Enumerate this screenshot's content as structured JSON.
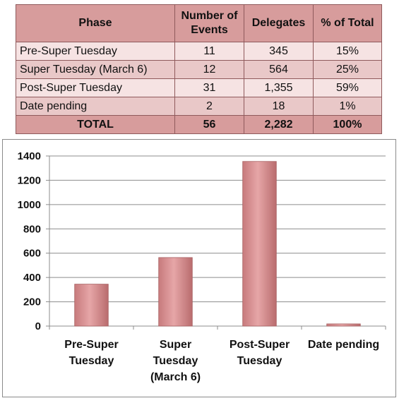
{
  "table": {
    "headers": [
      "Phase",
      "Number of Events",
      "Delegates",
      "% of Total"
    ],
    "rows": [
      {
        "phase": "Pre-Super Tuesday",
        "events": "11",
        "delegates": "345",
        "pct": "15%"
      },
      {
        "phase": "Super Tuesday (March 6)",
        "events": "12",
        "delegates": "564",
        "pct": "25%"
      },
      {
        "phase": "Post-Super Tuesday",
        "events": "31",
        "delegates": "1,355",
        "pct": "59%"
      },
      {
        "phase": "Date pending",
        "events": "2",
        "delegates": "18",
        "pct": "1%"
      }
    ],
    "total": {
      "phase": "TOTAL",
      "events": "56",
      "delegates": "2,282",
      "pct": "100%"
    }
  },
  "chart_data": {
    "type": "bar",
    "categories": [
      "Pre-Super Tuesday",
      "Super Tuesday (March 6)",
      "Post-Super Tuesday",
      "Date pending"
    ],
    "category_labels": [
      [
        "Pre-Super",
        "Tuesday"
      ],
      [
        "Super",
        "Tuesday",
        "(March 6)"
      ],
      [
        "Post-Super",
        "Tuesday"
      ],
      [
        "Date pending"
      ]
    ],
    "values": [
      345,
      564,
      1355,
      18
    ],
    "ylim": [
      0,
      1400
    ],
    "yticks": [
      0,
      200,
      400,
      600,
      800,
      1000,
      1200,
      1400
    ],
    "grid": true,
    "legend": "none",
    "bar_color": "#d9898a",
    "title": "",
    "xlabel": "",
    "ylabel": ""
  }
}
